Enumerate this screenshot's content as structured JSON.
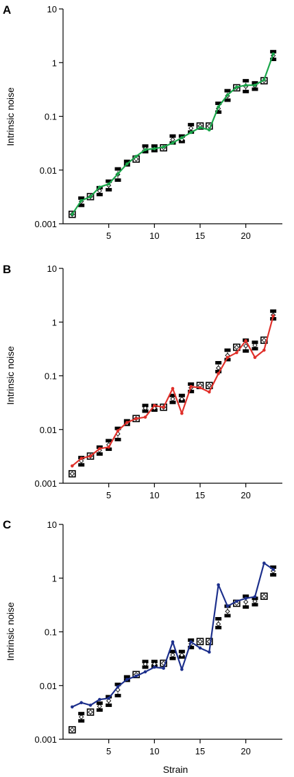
{
  "chart_data": [
    {
      "panel": "A",
      "type": "line",
      "ylabel": "Intrinsic noise",
      "xlabel": "",
      "yscale": "log",
      "ylim": [
        0.001,
        10
      ],
      "xlim": [
        0,
        24
      ],
      "yticks": [
        "0.001",
        "0.01",
        "0.1",
        "1",
        "10"
      ],
      "xticks": [
        "5",
        "10",
        "15",
        "20"
      ],
      "line_color": "#1aa64a",
      "x": [
        1,
        2,
        3,
        4,
        5,
        6,
        7,
        8,
        9,
        10,
        11,
        12,
        13,
        14,
        15,
        16,
        17,
        18,
        19,
        20,
        21,
        22,
        23
      ],
      "observed": {
        "center": [
          0.0015,
          0.0026,
          0.0032,
          0.0041,
          0.0052,
          0.0083,
          0.013,
          0.016,
          0.025,
          0.025,
          0.026,
          0.037,
          0.037,
          0.06,
          0.066,
          0.066,
          0.14,
          0.24,
          0.34,
          0.36,
          0.37,
          0.46,
          1.35
        ],
        "upper": [
          0.0015,
          0.003,
          0.0032,
          0.0047,
          0.0062,
          0.0105,
          0.0145,
          0.017,
          0.028,
          0.028,
          0.027,
          0.043,
          0.043,
          0.07,
          0.069,
          0.069,
          0.175,
          0.3,
          0.36,
          0.46,
          0.42,
          0.47,
          1.6
        ],
        "lower": [
          0.0015,
          0.0022,
          0.0032,
          0.0035,
          0.0043,
          0.0065,
          0.0125,
          0.0155,
          0.022,
          0.023,
          0.026,
          0.032,
          0.034,
          0.051,
          0.066,
          0.066,
          0.12,
          0.2,
          0.33,
          0.29,
          0.32,
          0.46,
          1.15
        ]
      },
      "series": [
        {
          "values": [
            0.0015,
            0.0027,
            0.0032,
            0.0048,
            0.0055,
            0.0085,
            0.013,
            0.018,
            0.024,
            0.025,
            0.027,
            0.032,
            0.04,
            0.05,
            0.062,
            0.056,
            0.15,
            0.25,
            0.35,
            0.38,
            0.38,
            0.48,
            1.45
          ]
        }
      ]
    },
    {
      "panel": "B",
      "type": "line",
      "ylabel": "Intrinsic noise",
      "xlabel": "",
      "yscale": "log",
      "ylim": [
        0.001,
        10
      ],
      "xlim": [
        0,
        24
      ],
      "yticks": [
        "0.001",
        "0.01",
        "0.1",
        "1",
        "10"
      ],
      "xticks": [
        "5",
        "10",
        "15",
        "20"
      ],
      "line_color": "#e0302a",
      "x": [
        1,
        2,
        3,
        4,
        5,
        6,
        7,
        8,
        9,
        10,
        11,
        12,
        13,
        14,
        15,
        16,
        17,
        18,
        19,
        20,
        21,
        22,
        23
      ],
      "observed": {
        "center": [
          0.0015,
          0.0026,
          0.0032,
          0.0041,
          0.0052,
          0.0083,
          0.013,
          0.016,
          0.025,
          0.025,
          0.026,
          0.037,
          0.037,
          0.06,
          0.066,
          0.066,
          0.14,
          0.24,
          0.34,
          0.36,
          0.37,
          0.46,
          1.35
        ],
        "upper": [
          0.0015,
          0.003,
          0.0032,
          0.0047,
          0.0062,
          0.0105,
          0.0145,
          0.017,
          0.028,
          0.028,
          0.027,
          0.043,
          0.043,
          0.07,
          0.069,
          0.069,
          0.175,
          0.3,
          0.36,
          0.46,
          0.42,
          0.47,
          1.6
        ],
        "lower": [
          0.0015,
          0.0022,
          0.0032,
          0.0035,
          0.0043,
          0.0065,
          0.0125,
          0.0155,
          0.022,
          0.023,
          0.026,
          0.032,
          0.034,
          0.051,
          0.066,
          0.066,
          0.12,
          0.2,
          0.33,
          0.29,
          0.32,
          0.46,
          1.15
        ]
      },
      "series": [
        {
          "values": [
            0.0021,
            0.0029,
            0.0032,
            0.0044,
            0.0047,
            0.0095,
            0.0135,
            0.016,
            0.017,
            0.028,
            0.026,
            0.058,
            0.02,
            0.063,
            0.06,
            0.05,
            0.11,
            0.22,
            0.27,
            0.45,
            0.22,
            0.3,
            1.3
          ]
        }
      ]
    },
    {
      "panel": "C",
      "type": "line",
      "ylabel": "Intrinsic noise",
      "xlabel": "Strain",
      "yscale": "log",
      "ylim": [
        0.001,
        10
      ],
      "xlim": [
        0,
        24
      ],
      "yticks": [
        "0.001",
        "0.01",
        "0.1",
        "1",
        "10"
      ],
      "xticks": [
        "5",
        "10",
        "15",
        "20"
      ],
      "line_color": "#1c2f8c",
      "x": [
        1,
        2,
        3,
        4,
        5,
        6,
        7,
        8,
        9,
        10,
        11,
        12,
        13,
        14,
        15,
        16,
        17,
        18,
        19,
        20,
        21,
        22,
        23
      ],
      "observed": {
        "center": [
          0.0015,
          0.0026,
          0.0032,
          0.0041,
          0.0052,
          0.0083,
          0.013,
          0.016,
          0.025,
          0.025,
          0.026,
          0.037,
          0.037,
          0.06,
          0.066,
          0.066,
          0.14,
          0.24,
          0.34,
          0.36,
          0.37,
          0.46,
          1.35
        ],
        "upper": [
          0.0015,
          0.003,
          0.0032,
          0.0047,
          0.0062,
          0.0105,
          0.0145,
          0.017,
          0.028,
          0.028,
          0.027,
          0.043,
          0.043,
          0.07,
          0.069,
          0.069,
          0.175,
          0.3,
          0.36,
          0.46,
          0.42,
          0.47,
          1.6
        ],
        "lower": [
          0.0015,
          0.0022,
          0.0032,
          0.0035,
          0.0043,
          0.0065,
          0.0125,
          0.0155,
          0.022,
          0.023,
          0.026,
          0.032,
          0.034,
          0.051,
          0.066,
          0.066,
          0.12,
          0.2,
          0.33,
          0.29,
          0.32,
          0.46,
          1.15
        ]
      },
      "series": [
        {
          "values": [
            0.004,
            0.0048,
            0.0043,
            0.0055,
            0.0058,
            0.0095,
            0.013,
            0.015,
            0.018,
            0.022,
            0.021,
            0.065,
            0.02,
            0.065,
            0.05,
            0.042,
            0.75,
            0.3,
            0.37,
            0.42,
            0.45,
            1.9,
            1.45
          ]
        }
      ]
    }
  ]
}
